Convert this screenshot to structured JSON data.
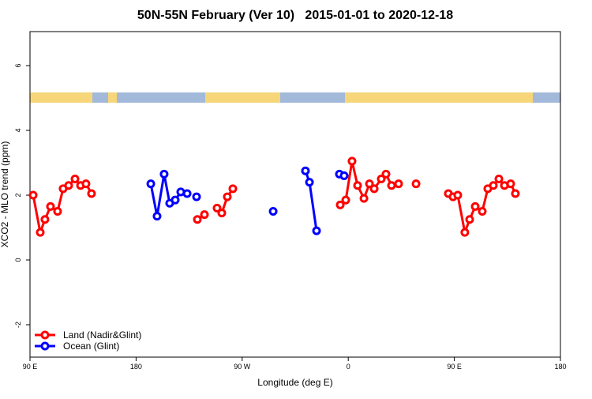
{
  "chart_data": {
    "type": "line",
    "title": "50N-55N February (Ver 10)   2015-01-01 to 2020-12-18",
    "x_label": "Longitude (deg E)",
    "y_label": "XCO2 - MLO trend (ppm)",
    "xlim": [
      90,
      540
    ],
    "xticks": [
      {
        "value": 90,
        "label": "90 E"
      },
      180,
      {
        "value": 270,
        "label": "90 W"
      },
      {
        "value": 360,
        "label": "0"
      },
      {
        "value": 450,
        "label": "90 E"
      },
      {
        "value": 540,
        "label": "180"
      }
    ],
    "ylim": [
      -3,
      7.05
    ],
    "yticks": [
      -2,
      0,
      2,
      4,
      6
    ],
    "legend": "bottomleft",
    "series": [
      {
        "name": "Land (Nadir&Glint)",
        "color": "#ff0000",
        "x": [
          92.7,
          98.7,
          102.7,
          107.4,
          113.4,
          118.1,
          122.8,
          128.2,
          132.9,
          137.5,
          142.2,
          null,
          232.0,
          238.0,
          null,
          248.7,
          252.7,
          257.4,
          262.1,
          null,
          353.2,
          357.9,
          363.2,
          367.9,
          373.3,
          378.0,
          382.0,
          388.0,
          392.0,
          396.7,
          402.7,
          null,
          417.5,
          null,
          444.9,
          448.9,
          452.9,
          458.9,
          463.0,
          467.7,
          473.7,
          478.4,
          483.1,
          487.8,
          492.5,
          497.8,
          501.8
        ],
        "values": [
          2.0,
          0.85,
          1.25,
          1.65,
          1.5,
          2.2,
          2.3,
          2.5,
          2.3,
          2.35,
          2.05,
          null,
          1.25,
          1.4,
          null,
          1.6,
          1.45,
          1.95,
          2.2,
          null,
          1.7,
          1.85,
          3.05,
          2.3,
          1.9,
          2.35,
          2.2,
          2.5,
          2.65,
          2.3,
          2.35,
          null,
          2.35,
          null,
          2.05,
          1.95,
          2.0,
          0.85,
          1.25,
          1.65,
          1.5,
          2.2,
          2.3,
          2.5,
          2.3,
          2.35,
          2.05
        ]
      },
      {
        "name": "Ocean (Glint)",
        "color": "#0000ff",
        "x": [
          192.5,
          197.8,
          203.8,
          208.5,
          213.2,
          217.9,
          223.3,
          null,
          231.3,
          null,
          296.3,
          null,
          323.7,
          327.1,
          333.1,
          null,
          352.5,
          356.5
        ],
        "values": [
          2.35,
          1.35,
          2.65,
          1.75,
          1.85,
          2.1,
          2.05,
          null,
          1.95,
          null,
          1.5,
          null,
          2.75,
          2.4,
          0.9,
          null,
          2.65,
          2.6
        ]
      }
    ]
  }
}
